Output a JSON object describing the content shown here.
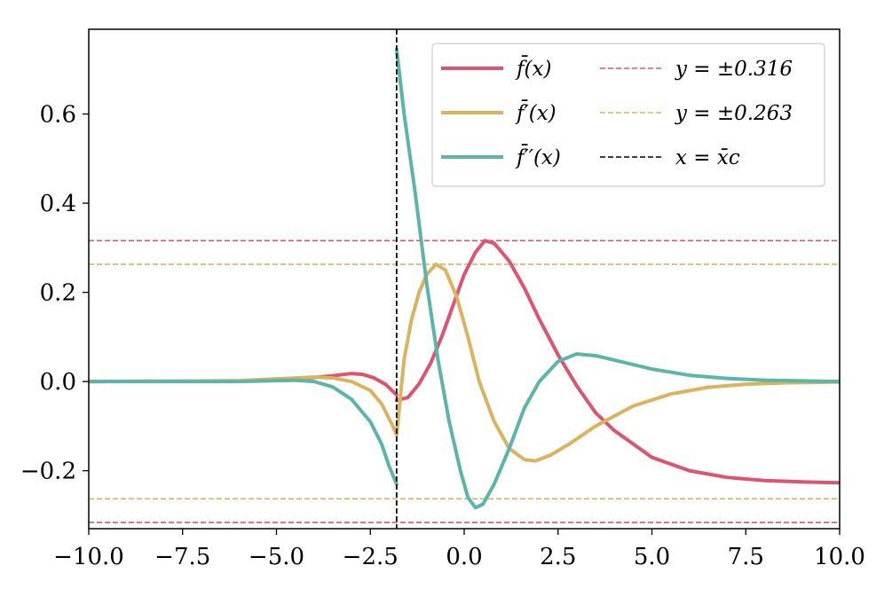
{
  "chart_data": {
    "type": "line",
    "title": "",
    "xlabel": "",
    "ylabel": "",
    "xlim": [
      -10,
      10
    ],
    "ylim": [
      -0.33,
      0.79
    ],
    "grid": false,
    "legend_position": "top-right",
    "legend_columns": 2,
    "x_ticks": [
      -10,
      -7.5,
      -5,
      -2.5,
      0,
      2.5,
      5,
      7.5,
      10
    ],
    "x_tick_labels": [
      "−10.0",
      "−7.5",
      "−5.0",
      "−2.5",
      "0.0",
      "2.5",
      "5.0",
      "7.5",
      "10.0"
    ],
    "y_ticks": [
      -0.2,
      0.0,
      0.2,
      0.4,
      0.6
    ],
    "y_tick_labels": [
      "−0.2",
      "0.0",
      "0.2",
      "0.4",
      "0.6"
    ],
    "series": [
      {
        "name": "f̄(x)",
        "color": "#dd5470",
        "style": "solid",
        "points": [
          [
            -10,
            0.0
          ],
          [
            -6,
            0.001
          ],
          [
            -5,
            0.004
          ],
          [
            -4,
            0.009
          ],
          [
            -3.5,
            0.013
          ],
          [
            -3,
            0.018
          ],
          [
            -2.7,
            0.016
          ],
          [
            -2.4,
            0.008
          ],
          [
            -2.1,
            -0.006
          ],
          [
            -1.8,
            -0.03
          ]
        ]
      },
      {
        "name": "f̄(x)",
        "color": "#dd5470",
        "style": "solid",
        "points": [
          [
            -1.8,
            -0.042
          ],
          [
            -1.5,
            -0.036
          ],
          [
            -1.2,
            -0.005
          ],
          [
            -0.9,
            0.04
          ],
          [
            -0.6,
            0.1
          ],
          [
            -0.3,
            0.17
          ],
          [
            0,
            0.24
          ],
          [
            0.3,
            0.29
          ],
          [
            0.55,
            0.316
          ],
          [
            0.8,
            0.31
          ],
          [
            1.2,
            0.27
          ],
          [
            1.6,
            0.21
          ],
          [
            2,
            0.14
          ],
          [
            2.5,
            0.06
          ],
          [
            3,
            -0.01
          ],
          [
            3.5,
            -0.07
          ],
          [
            4,
            -0.11
          ],
          [
            5,
            -0.17
          ],
          [
            6,
            -0.2
          ],
          [
            7,
            -0.215
          ],
          [
            8,
            -0.222
          ],
          [
            9,
            -0.225
          ],
          [
            10,
            -0.227
          ]
        ]
      },
      {
        "name": "f̄′(x)",
        "color": "#dbb35e",
        "style": "solid",
        "points": [
          [
            -10,
            0.0
          ],
          [
            -6,
            0.002
          ],
          [
            -5,
            0.006
          ],
          [
            -4,
            0.01
          ],
          [
            -3.5,
            0.008
          ],
          [
            -3,
            0.0
          ],
          [
            -2.5,
            -0.02
          ],
          [
            -2.2,
            -0.05
          ],
          [
            -1.9,
            -0.1
          ],
          [
            -1.8,
            -0.12
          ]
        ]
      },
      {
        "name": "f̄′(x)",
        "color": "#dbb35e",
        "style": "solid",
        "points": [
          [
            -1.8,
            -0.12
          ],
          [
            -1.6,
            0.05
          ],
          [
            -1.4,
            0.14
          ],
          [
            -1.2,
            0.2
          ],
          [
            -1.0,
            0.24
          ],
          [
            -0.75,
            0.263
          ],
          [
            -0.5,
            0.25
          ],
          [
            -0.2,
            0.19
          ],
          [
            0.1,
            0.1
          ],
          [
            0.4,
            0.0
          ],
          [
            0.8,
            -0.09
          ],
          [
            1.2,
            -0.15
          ],
          [
            1.6,
            -0.175
          ],
          [
            1.9,
            -0.178
          ],
          [
            2.3,
            -0.165
          ],
          [
            2.8,
            -0.14
          ],
          [
            3.5,
            -0.1
          ],
          [
            4.5,
            -0.055
          ],
          [
            5.5,
            -0.028
          ],
          [
            6.5,
            -0.013
          ],
          [
            7.5,
            -0.006
          ],
          [
            8.5,
            -0.003
          ],
          [
            10,
            -0.001
          ]
        ]
      },
      {
        "name": "f̄′′(x)",
        "color": "#5bb5aa",
        "style": "solid",
        "points": [
          [
            -10,
            0.0
          ],
          [
            -6,
            0.0
          ],
          [
            -5,
            0.002
          ],
          [
            -4.5,
            0.003
          ],
          [
            -4,
            0.0
          ],
          [
            -3.5,
            -0.012
          ],
          [
            -3,
            -0.04
          ],
          [
            -2.5,
            -0.09
          ],
          [
            -2.2,
            -0.14
          ],
          [
            -2,
            -0.19
          ],
          [
            -1.8,
            -0.23
          ]
        ]
      },
      {
        "name": "f̄′′(x)",
        "color": "#5bb5aa",
        "style": "solid",
        "points": [
          [
            -1.8,
            0.745
          ],
          [
            -1.6,
            0.6
          ],
          [
            -1.3,
            0.42
          ],
          [
            -1.0,
            0.22
          ],
          [
            -0.7,
            0.05
          ],
          [
            -0.4,
            -0.09
          ],
          [
            -0.1,
            -0.2
          ],
          [
            0.1,
            -0.26
          ],
          [
            0.3,
            -0.283
          ],
          [
            0.5,
            -0.275
          ],
          [
            0.8,
            -0.23
          ],
          [
            1.2,
            -0.15
          ],
          [
            1.6,
            -0.06
          ],
          [
            2,
            0.0
          ],
          [
            2.5,
            0.045
          ],
          [
            3,
            0.062
          ],
          [
            3.5,
            0.058
          ],
          [
            4,
            0.048
          ],
          [
            5,
            0.028
          ],
          [
            6,
            0.014
          ],
          [
            7,
            0.007
          ],
          [
            8,
            0.003
          ],
          [
            10,
            0.0
          ]
        ]
      },
      {
        "name": "y = ±0.316",
        "color": "#dd5470",
        "style": "dashed",
        "hlines": [
          0.316,
          -0.316
        ]
      },
      {
        "name": "y = ±0.263",
        "color": "#dbb35e",
        "style": "dashed",
        "hlines": [
          0.263,
          -0.263
        ]
      },
      {
        "name": "x = x̄c",
        "color": "#000000",
        "style": "dashed",
        "vline": -1.8
      }
    ],
    "legend": [
      {
        "label": "f̄(x)",
        "color": "#dd5470",
        "style": "solid"
      },
      {
        "label": "f̄′(x)",
        "color": "#dbb35e",
        "style": "solid"
      },
      {
        "label": "f̄′′(x)",
        "color": "#5bb5aa",
        "style": "solid"
      },
      {
        "label": "y = ±0.316",
        "color": "#dd5470",
        "style": "dashed"
      },
      {
        "label": "y = ±0.263",
        "color": "#dbb35e",
        "style": "dashed"
      },
      {
        "label": "x = x̄c",
        "color": "#000000",
        "style": "dashed"
      }
    ]
  }
}
